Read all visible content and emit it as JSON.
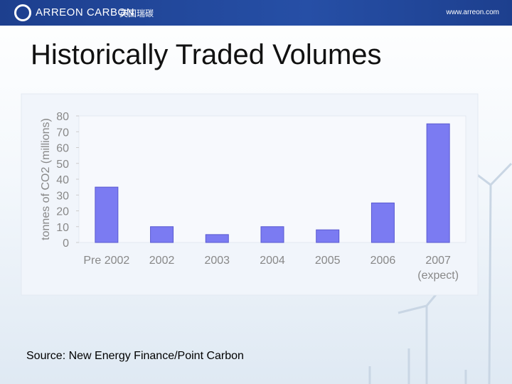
{
  "header": {
    "logo": "ARREON CARBON",
    "logo_cn": "英国瑞碳",
    "url": "www.arreon.com"
  },
  "title": "Historically Traded Volumes",
  "chart_data": {
    "type": "bar",
    "y_label": "tonnes of CO2 (millions)",
    "categories": [
      "Pre 2002",
      "2002",
      "2003",
      "2004",
      "2005",
      "2006",
      "2007 (expect)"
    ],
    "values": [
      35,
      10,
      5,
      10,
      8,
      25,
      75
    ],
    "color": "#7b7bf2",
    "ylim": [
      0,
      80
    ],
    "yticks": [
      0,
      10,
      20,
      30,
      40,
      50,
      60,
      70,
      80
    ],
    "grid": false
  },
  "source": "Source: New Energy Finance/Point Carbon"
}
